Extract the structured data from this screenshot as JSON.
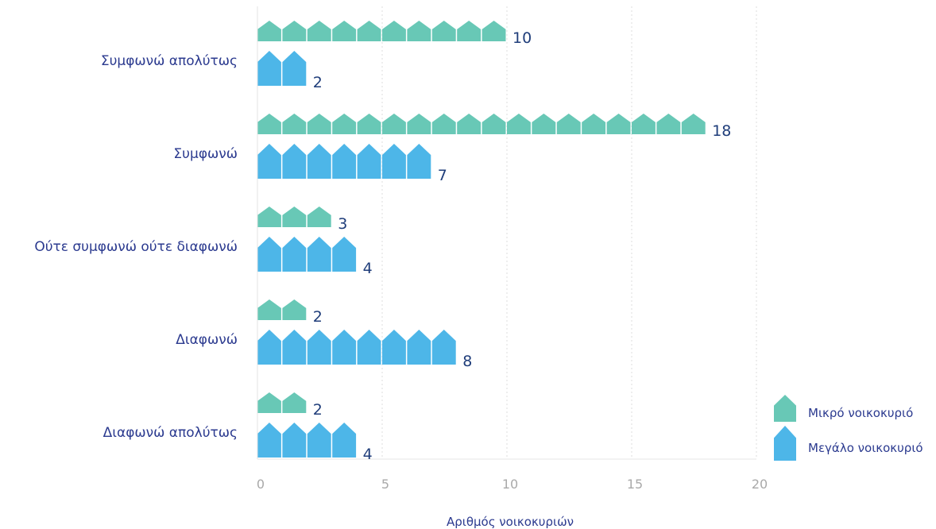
{
  "chart_data": {
    "type": "bar",
    "orientation": "horizontal",
    "categories": [
      "Συμφωνώ απολύτως",
      "Συμφωνώ",
      "Ούτε συμφωνώ ούτε διαφωνώ",
      "Διαφωνώ",
      "Διαφωνώ απολύτως"
    ],
    "series": [
      {
        "name": "Μικρό νοικοκυριό",
        "color": "#68c8b6",
        "icon": "small-house-icon",
        "values": [
          10,
          18,
          3,
          2,
          2
        ]
      },
      {
        "name": "Μεγάλο νοικοκυριό",
        "color": "#4db6e8",
        "icon": "large-house-icon",
        "values": [
          2,
          7,
          4,
          8,
          4
        ]
      }
    ],
    "xlabel": "Αριθμός νοικοκυριών",
    "xlim": [
      0,
      20
    ],
    "xticks": [
      0,
      5,
      10,
      15,
      20
    ],
    "grid": "vertical dotted",
    "legend": "bottom-right"
  }
}
